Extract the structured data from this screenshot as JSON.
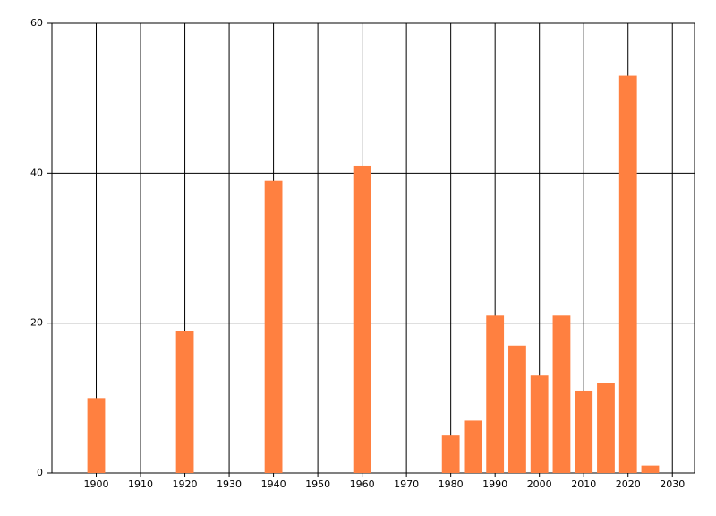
{
  "chart_data": {
    "type": "bar",
    "x": [
      1900,
      1920,
      1940,
      1960,
      1980,
      1985,
      1990,
      1995,
      2000,
      2005,
      2010,
      2015,
      2020,
      2025
    ],
    "values": [
      10,
      19,
      39,
      41,
      5,
      7,
      21,
      17,
      13,
      21,
      11,
      12,
      53,
      1
    ],
    "color": "#ff8040",
    "xlim": [
      1890,
      2035
    ],
    "xticks": [
      1900,
      1910,
      1920,
      1930,
      1940,
      1950,
      1960,
      1970,
      1980,
      1990,
      2000,
      2010,
      2020,
      2030
    ],
    "ylim": [
      0,
      60
    ],
    "yticks": [
      0,
      20,
      40,
      60
    ],
    "grid": true
  }
}
